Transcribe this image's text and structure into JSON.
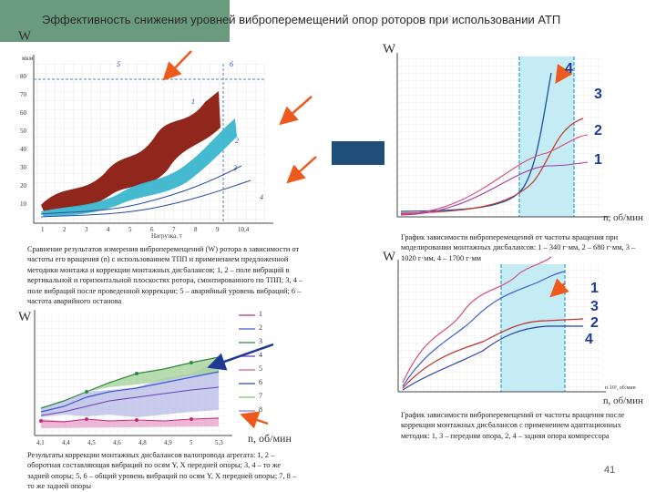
{
  "slide": {
    "title": "Эффективность снижения уровней виброперемещений опор роторов при использовании АТП",
    "page_number": "41"
  },
  "top_left_chart": {
    "y_axis_letter": "W",
    "y_unit": "мкм",
    "y_ticks": [
      "80",
      "70",
      "60",
      "50",
      "40",
      "30",
      "20",
      "10"
    ],
    "x_ticks": [
      "1",
      "2",
      "3",
      "4",
      "5",
      "6",
      "7",
      "8",
      "9",
      "10,4"
    ],
    "x_axis_label": "Нагрузка, т",
    "curve_labels": [
      "5",
      "6",
      "1",
      "2",
      "3",
      "4"
    ],
    "caption": "Сравнение результатов измерения виброперемещений (W) ротора в зависимости от частоты его вращения (n) с использованием ТПП и применением предложенной методики монтажа и коррекции монтажных дисбалансов; 1, 2 – поле вибраций в вертикальной и горизонтальной плоскостях ротора, смонтированного по ТПП; 3, 4 – поле вибраций после проведенной коррекции; 5 – аварийный уровень вибраций; 6 – частота аварийного останова"
  },
  "bottom_left_chart": {
    "y_axis_letter": "W",
    "x_ticks": [
      "4,1",
      "4,4",
      "4,5",
      "4,6",
      "4,8",
      "4,9",
      "5",
      "5,3"
    ],
    "x_axis_label": "n, об/мин",
    "legend": [
      "1",
      "2",
      "3",
      "4",
      "5",
      "6",
      "7",
      "8"
    ],
    "caption": "Результаты коррекции монтажных дисбалансов валопровода агрегата: 1, 2 – оборотная составляющая вибраций по осям Y, X передней опоры; 3, 4 – то же задней опоры; 5, 6 – общий уровень вибраций по осям Y, X передней опоры; 7, 8 – то же задней опоры"
  },
  "top_right_chart": {
    "y_axis_letter": "W",
    "x_axis_label": "n, об/мин",
    "curve_numbers": [
      "4",
      "3",
      "2",
      "1"
    ],
    "caption": "График зависимости виброперемещений от частоты вращения при моделировании монтажных дисбалансов: 1 – 340 г·мм, 2 – 680 г·мм, 3 – 1020 г·мм, 4 – 1700 г·мм"
  },
  "bottom_right_chart": {
    "y_axis_letter": "W",
    "x_axis_label": "n, об/мин",
    "x_unit": "n·10³, об/мин",
    "curve_numbers": [
      "1",
      "3",
      "2",
      "4"
    ],
    "caption": "График зависимости виброперемещений от частоты вращения после коррекции монтажных дисбалансов с применением адаптационных методик: 1, 3 – передняя опора, 2, 4 – задняя опора компрессора"
  },
  "colors": {
    "band": "#6b9b7e",
    "dark_red": "#8b1a10",
    "cyan": "#3bb6cf",
    "arrow": "#ec5a1e",
    "navy": "#1f4e79"
  }
}
